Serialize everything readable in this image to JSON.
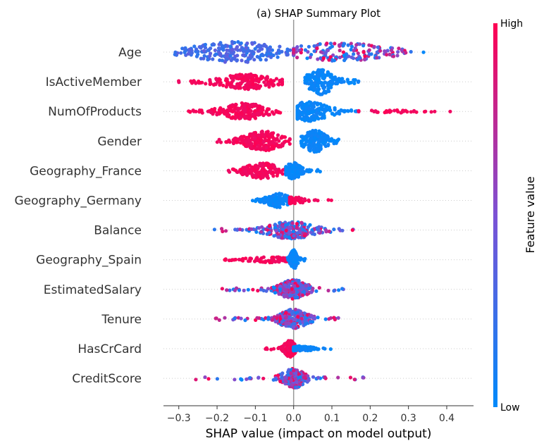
{
  "chart_data": {
    "type": "scatter",
    "subtype": "shap-beeswarm",
    "title": "(a) SHAP Summary Plot",
    "xlabel": "SHAP value (impact on model output)",
    "xlim": [
      -0.34,
      0.47
    ],
    "xticks": [
      -0.3,
      -0.2,
      -0.1,
      0.0,
      0.1,
      0.2,
      0.3,
      0.4
    ],
    "xtick_labels": [
      "−0.3",
      "−0.2",
      "−0.1",
      "0.0",
      "0.1",
      "0.2",
      "0.3",
      "0.4"
    ],
    "zero_line": 0.0,
    "grid": false,
    "colorbar": {
      "label": "Feature value",
      "high_label": "High",
      "low_label": "Low",
      "colors": [
        "#008afb",
        "#7c52d5",
        "#ff0052"
      ]
    },
    "features": [
      {
        "name": "Age",
        "neg_range": [
          -0.31,
          0.0
        ],
        "pos_range": [
          0.0,
          0.34
        ],
        "clusters": [
          {
            "lo": -0.31,
            "hi": 0.0,
            "peak": -0.15,
            "width": 0.08,
            "color": 0.15,
            "n": 220,
            "spread": 15
          },
          {
            "lo": 0.0,
            "hi": 0.34,
            "peak": 0.12,
            "width": 0.09,
            "color": 0.78,
            "n": 170,
            "spread": 13
          }
        ]
      },
      {
        "name": "IsActiveMember",
        "neg_range": [
          -0.31,
          -0.03
        ],
        "pos_range": [
          0.03,
          0.17
        ],
        "clusters": [
          {
            "lo": -0.31,
            "hi": -0.03,
            "peak": -0.12,
            "width": 0.05,
            "color": 1.0,
            "n": 200,
            "spread": 11
          },
          {
            "lo": 0.03,
            "hi": 0.17,
            "peak": 0.07,
            "width": 0.025,
            "color": 0.0,
            "n": 170,
            "spread": 18
          }
        ]
      },
      {
        "name": "NumOfProducts",
        "neg_range": [
          -0.28,
          -0.03
        ],
        "pos_range": [
          0.01,
          0.43
        ],
        "clusters": [
          {
            "lo": -0.28,
            "hi": -0.03,
            "peak": -0.13,
            "width": 0.04,
            "color": 1.0,
            "n": 210,
            "spread": 12
          },
          {
            "lo": 0.01,
            "hi": 0.18,
            "peak": 0.04,
            "width": 0.035,
            "color": 0.0,
            "n": 190,
            "spread": 14
          },
          {
            "lo": 0.17,
            "hi": 0.43,
            "peak": 0.25,
            "width": 0.06,
            "color": 1.0,
            "n": 35,
            "spread": 2
          }
        ]
      },
      {
        "name": "Gender",
        "neg_range": [
          -0.2,
          -0.01
        ],
        "pos_range": [
          0.02,
          0.12
        ],
        "clusters": [
          {
            "lo": -0.2,
            "hi": -0.01,
            "peak": -0.08,
            "width": 0.035,
            "color": 1.0,
            "n": 190,
            "spread": 14
          },
          {
            "lo": 0.02,
            "hi": 0.12,
            "peak": 0.055,
            "width": 0.02,
            "color": 0.0,
            "n": 160,
            "spread": 16
          }
        ]
      },
      {
        "name": "Geography_France",
        "neg_range": [
          -0.17,
          -0.01
        ],
        "pos_range": [
          -0.01,
          0.07
        ],
        "clusters": [
          {
            "lo": -0.17,
            "hi": -0.01,
            "peak": -0.08,
            "width": 0.035,
            "color": 1.0,
            "n": 150,
            "spread": 11
          },
          {
            "lo": -0.02,
            "hi": 0.07,
            "peak": 0.0,
            "width": 0.015,
            "color": 0.0,
            "n": 130,
            "spread": 12
          }
        ]
      },
      {
        "name": "Geography_Germany",
        "neg_range": [
          -0.11,
          -0.01
        ],
        "pos_range": [
          -0.01,
          0.1
        ],
        "clusters": [
          {
            "lo": -0.11,
            "hi": -0.01,
            "peak": -0.04,
            "width": 0.02,
            "color": 0.0,
            "n": 140,
            "spread": 10
          },
          {
            "lo": -0.01,
            "hi": 0.1,
            "peak": 0.0,
            "width": 0.02,
            "color": 1.0,
            "n": 60,
            "spread": 5
          }
        ]
      },
      {
        "name": "Balance",
        "neg_range": [
          -0.22,
          0.0
        ],
        "pos_range": [
          0.0,
          0.2
        ],
        "clusters": [
          {
            "lo": -0.22,
            "hi": 0.2,
            "peak": -0.005,
            "width": 0.04,
            "color": 0.45,
            "n": 260,
            "spread": 13
          }
        ]
      },
      {
        "name": "Geography_Spain",
        "neg_range": [
          -0.18,
          -0.01
        ],
        "pos_range": [
          -0.01,
          0.03
        ],
        "clusters": [
          {
            "lo": -0.18,
            "hi": -0.01,
            "peak": -0.05,
            "width": 0.05,
            "color": 1.0,
            "n": 90,
            "spread": 4
          },
          {
            "lo": -0.02,
            "hi": 0.03,
            "peak": 0.0,
            "width": 0.006,
            "color": 0.0,
            "n": 110,
            "spread": 14
          }
        ]
      },
      {
        "name": "EstimatedSalary",
        "neg_range": [
          -0.19,
          0.0
        ],
        "pos_range": [
          0.0,
          0.13
        ],
        "clusters": [
          {
            "lo": -0.19,
            "hi": 0.13,
            "peak": 0.0,
            "width": 0.025,
            "color": 0.5,
            "n": 240,
            "spread": 14
          }
        ]
      },
      {
        "name": "Tenure",
        "neg_range": [
          -0.21,
          0.0
        ],
        "pos_range": [
          0.0,
          0.12
        ],
        "clusters": [
          {
            "lo": -0.21,
            "hi": 0.12,
            "peak": 0.0,
            "width": 0.025,
            "color": 0.5,
            "n": 240,
            "spread": 14
          }
        ]
      },
      {
        "name": "HasCrCard",
        "neg_range": [
          -0.08,
          0.0
        ],
        "pos_range": [
          0.0,
          0.1
        ],
        "clusters": [
          {
            "lo": -0.08,
            "hi": 0.01,
            "peak": -0.01,
            "width": 0.01,
            "color": 1.0,
            "n": 130,
            "spread": 12
          },
          {
            "lo": 0.0,
            "hi": 0.1,
            "peak": 0.02,
            "width": 0.02,
            "color": 0.0,
            "n": 90,
            "spread": 4
          }
        ]
      },
      {
        "name": "CreditScore",
        "neg_range": [
          -0.26,
          0.0
        ],
        "pos_range": [
          0.0,
          0.19
        ],
        "clusters": [
          {
            "lo": -0.26,
            "hi": 0.19,
            "peak": 0.0,
            "width": 0.02,
            "color": 0.5,
            "n": 220,
            "spread": 14
          }
        ]
      }
    ]
  }
}
